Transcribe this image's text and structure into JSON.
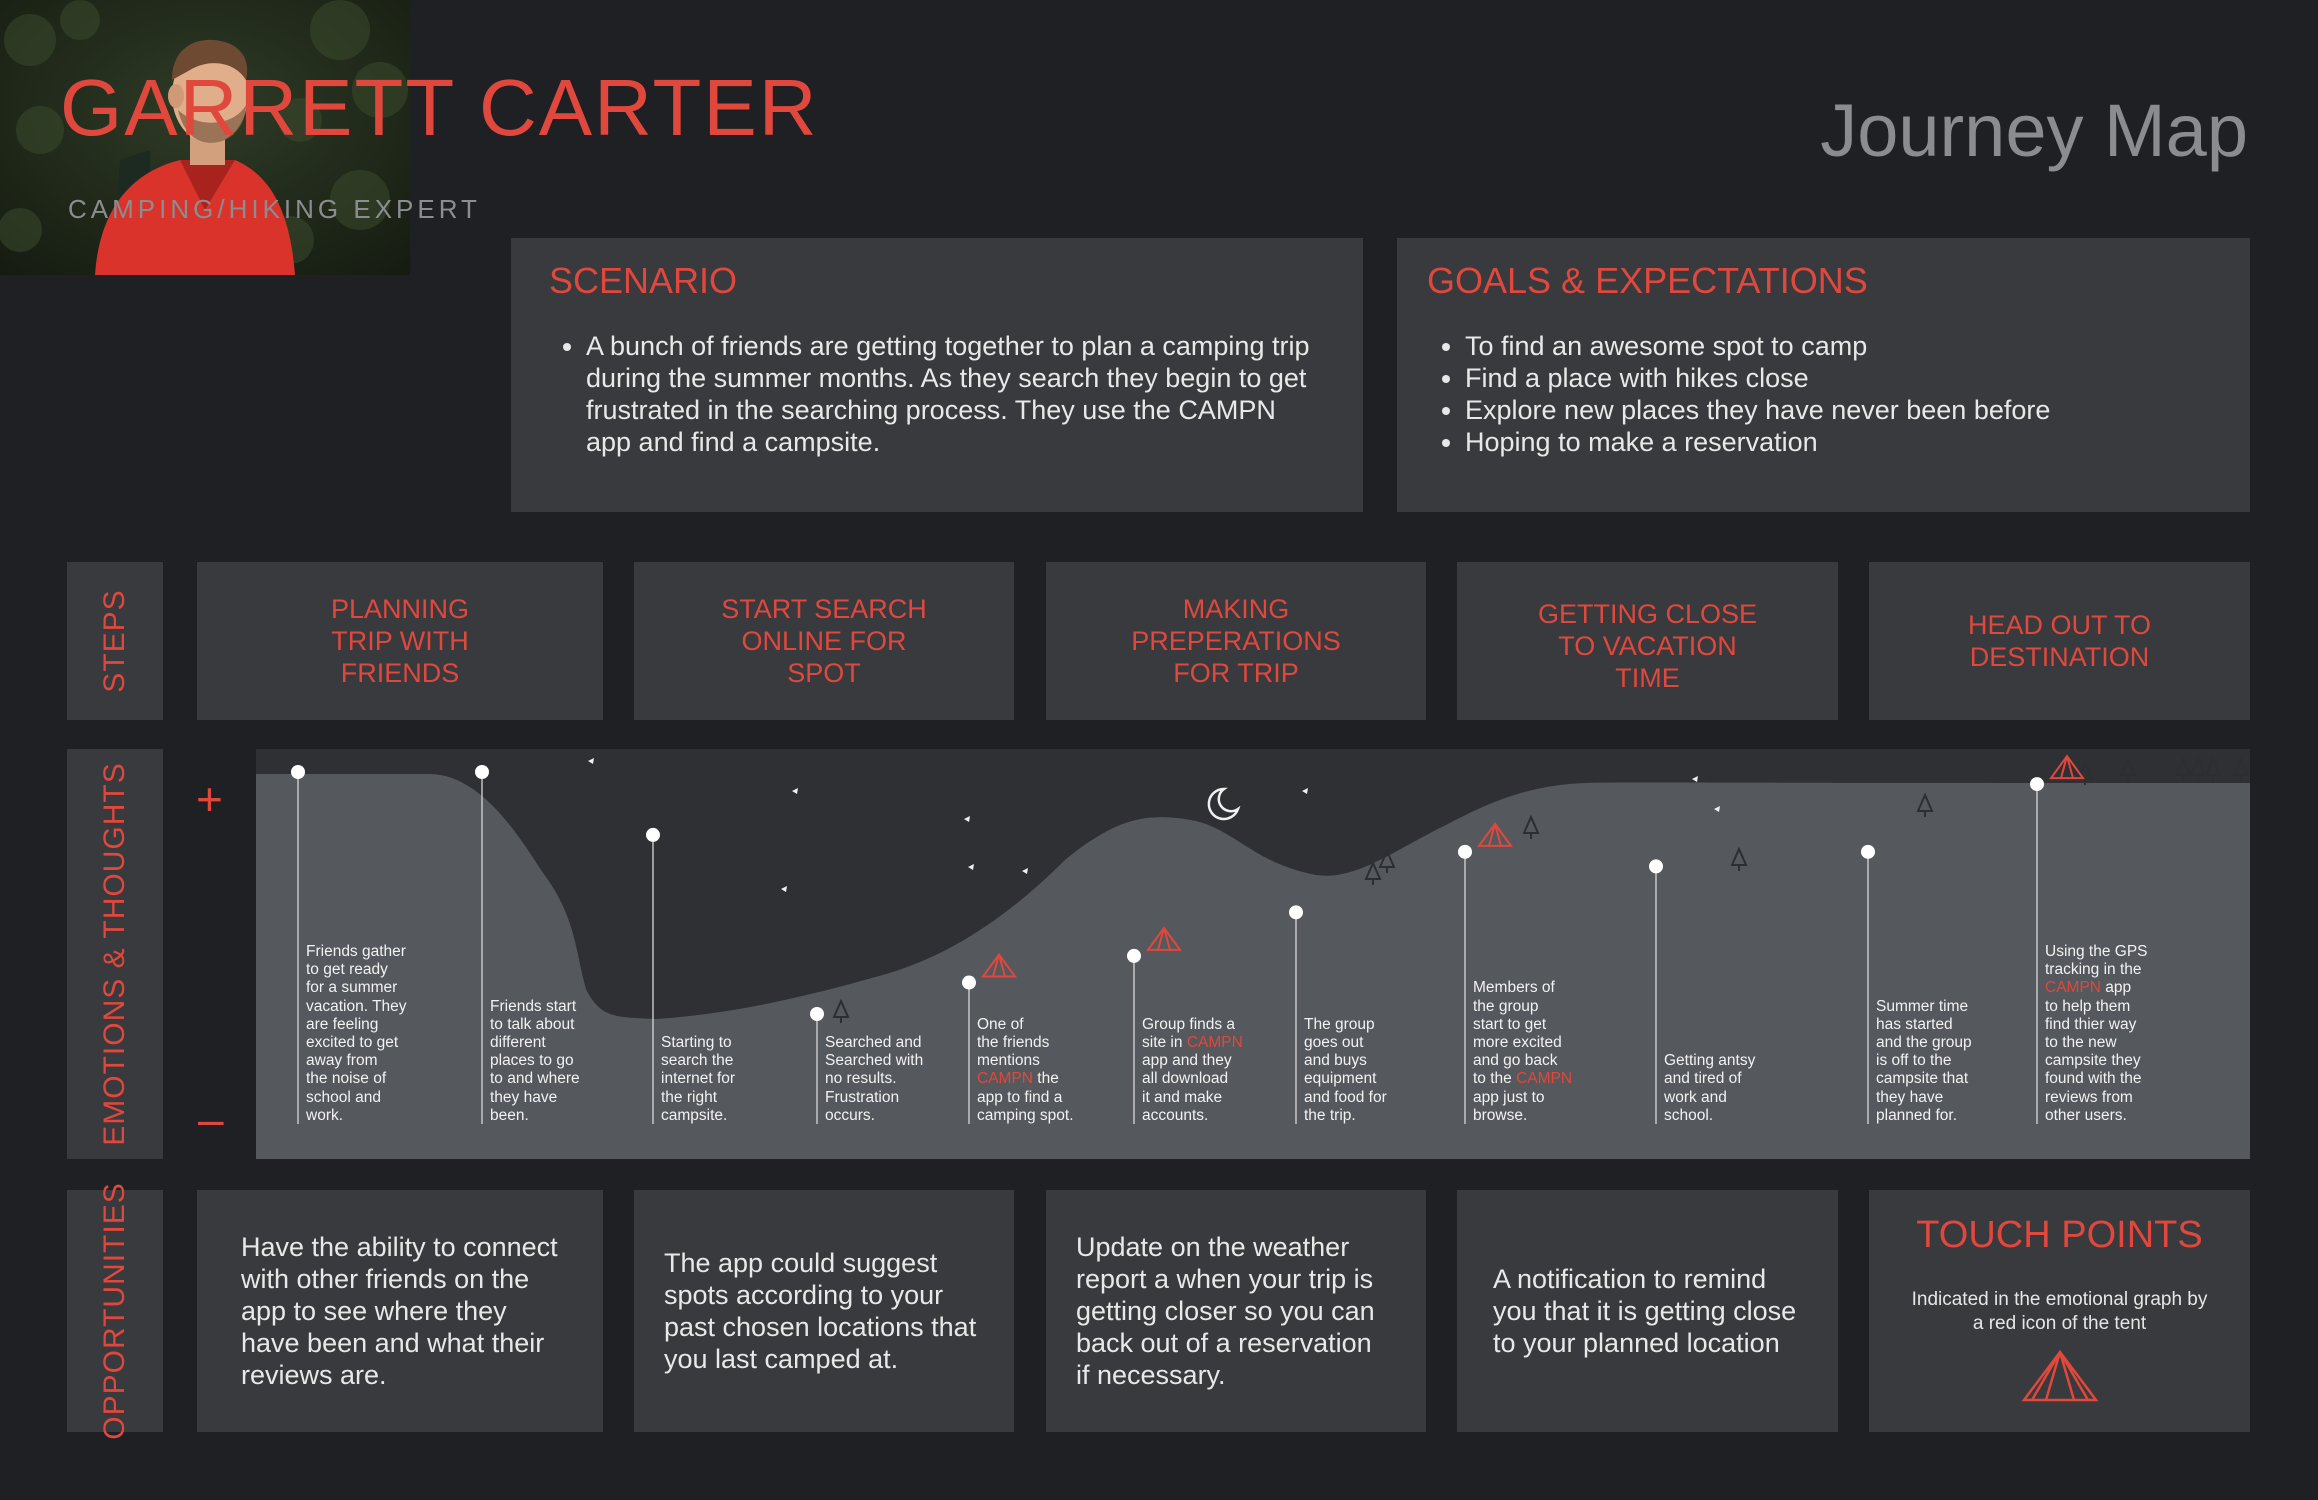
{
  "header": {
    "name": "GARRETT CARTER",
    "subtitle": "CAMPING/HIKING EXPERT",
    "journey_title": "Journey Map"
  },
  "scenario": {
    "title": "SCENARIO",
    "bullets": [
      "A bunch of friends are getting together to plan a camping trip during the summer months. As they search they begin to get frustrated in the searching process. They use the CAMPN app and find a campsite."
    ]
  },
  "goals": {
    "title": "GOALS & EXPECTATIONS",
    "bullets": [
      "To find an awesome spot to camp",
      "Find a place with hikes close",
      "Explore new places they have never been before",
      "Hoping to make a reservation"
    ]
  },
  "row_labels": {
    "steps": "STEPS",
    "emotions": "EMOTIONS & THOUGHTS",
    "opportunities": "OPPORTUNITIES",
    "plus": "+",
    "minus": "–"
  },
  "steps": [
    "PLANNING TRIP WITH FRIENDS",
    "START SEARCH ONLINE FOR SPOT",
    "MAKING PREPERATIONS FOR TRIP",
    "GETTING CLOSE TO VACATION TIME",
    "HEAD OUT TO DESTINATION"
  ],
  "emotions": {
    "points": [
      {
        "text": [
          "Friends gather",
          "to get ready",
          "for a summer",
          "vacation. They",
          "are feeling",
          "excited to get",
          "away from",
          "the noise of",
          "school and",
          "work."
        ],
        "level": 1.0
      },
      {
        "text": [
          "Friends start",
          "to talk about",
          "different",
          "places to go",
          "to and where",
          "they have",
          "been."
        ],
        "level": 1.0
      },
      {
        "text": [
          "Starting to",
          "search the",
          "internet for",
          "the right",
          "campsite."
        ],
        "level": 0.74
      },
      {
        "text": [
          "Searched and",
          "Searched with",
          "no results.",
          "Frustration",
          "occurs."
        ],
        "level": 0.0
      },
      {
        "text": [
          "One of",
          "the friends",
          "mentions",
          "[CAMPN] the",
          "app to find a",
          "camping spot."
        ],
        "level": 0.13,
        "touchpoint": true
      },
      {
        "text": [
          "Group finds a",
          "site in [CAMPN]",
          "app and they",
          "all download",
          "it and make",
          "accounts."
        ],
        "level": 0.24,
        "touchpoint": true
      },
      {
        "text": [
          "The group",
          "goes out",
          "and buys",
          "equipment",
          "and food for",
          "the trip."
        ],
        "level": 0.42
      },
      {
        "text": [
          "Members of",
          "the group",
          "start to get",
          "more excited",
          "and go back",
          "to the [CAMPN]",
          "app just to",
          "browse."
        ],
        "level": 0.67,
        "touchpoint": true
      },
      {
        "text": [
          "Getting antsy",
          "and tired of",
          "work and",
          "school."
        ],
        "level": 0.61
      },
      {
        "text": [
          "Summer time",
          "has started",
          "and the group",
          "is off to the",
          "campsite that",
          "they have",
          "planned for."
        ],
        "level": 0.67
      },
      {
        "text": [
          "Using the GPS",
          "tracking in the",
          "[CAMPN] app",
          "to help them",
          "find thier way",
          "to the new",
          "campsite they",
          "found with the",
          "reviews from",
          "other users."
        ],
        "level": 0.95,
        "touchpoint": true
      }
    ]
  },
  "opportunities": [
    "Have the ability to connect with other friends on the app to see where they have been and what their reviews are.",
    "The app could suggest spots according to your past chosen locations that you last camped at.",
    "Update on the weather report a when your trip is getting closer so you can back out of a reservation if necessary.",
    "A notification to remind you that it is getting close to your planned location"
  ],
  "touch_points": {
    "title": "TOUCH POINTS",
    "description": "Indicated in the emotional graph by a red icon of the tent"
  },
  "colors": {
    "background": "#1e2023",
    "panel": "#383a3d",
    "accent_red": "#e0483d",
    "hill": "#55585c",
    "sky": "#2e3033"
  },
  "icons": [
    "tent-icon",
    "moon-icon",
    "tree-icon",
    "star-icon",
    "portrait-photo"
  ]
}
